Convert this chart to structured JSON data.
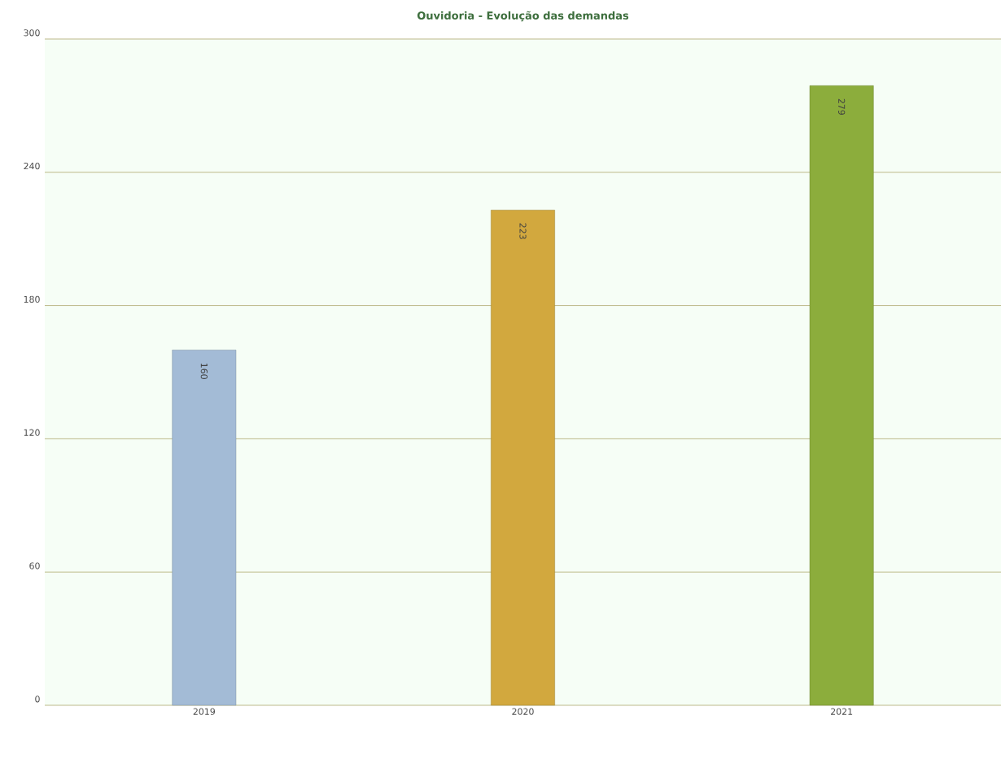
{
  "chart_data": {
    "type": "bar",
    "title": "Ouvidoria - Evolução das demandas",
    "categories": [
      "2019",
      "2020",
      "2021"
    ],
    "values": [
      160,
      223,
      279
    ],
    "colors": [
      "#a3bbd6",
      "#d2a83e",
      "#8cad3c"
    ],
    "ylim": [
      0,
      300
    ],
    "yticks": [
      0,
      60,
      120,
      180,
      240,
      300
    ],
    "grid": "y",
    "data_labels": true
  }
}
